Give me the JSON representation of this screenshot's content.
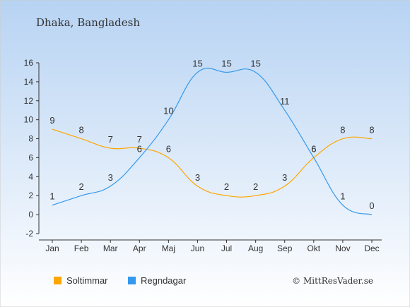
{
  "title": "Dhaka, Bangladesh",
  "source": "© MittResVader.se",
  "chart_data": {
    "type": "line",
    "categories": [
      "Jan",
      "Feb",
      "Mar",
      "Apr",
      "Maj",
      "Jun",
      "Jul",
      "Aug",
      "Sep",
      "Okt",
      "Nov",
      "Dec"
    ],
    "ylim": [
      -2,
      16
    ],
    "yticks": [
      -2,
      0,
      2,
      4,
      6,
      8,
      10,
      12,
      14,
      16
    ],
    "grid": false,
    "legend_position": "bottom-left",
    "series": [
      {
        "name": "Soltimmar",
        "color": "#ffa500",
        "values": [
          9,
          8,
          7,
          7,
          6,
          3,
          2,
          2,
          3,
          6,
          8,
          8
        ]
      },
      {
        "name": "Regndagar",
        "color": "#3399ee",
        "values": [
          1,
          2,
          3,
          6,
          10,
          15,
          15,
          15,
          11,
          6,
          1,
          0
        ]
      }
    ]
  },
  "colors": {
    "background_top": "#b7d3f3",
    "background_bottom": "#ffffff",
    "axis": "#333333"
  }
}
